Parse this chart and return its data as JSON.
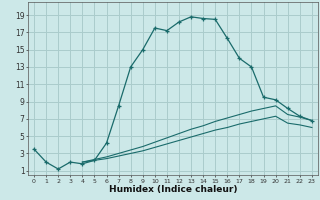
{
  "xlabel": "Humidex (Indice chaleur)",
  "xlim": [
    -0.5,
    23.5
  ],
  "ylim": [
    0.5,
    20.5
  ],
  "xticks": [
    0,
    1,
    2,
    3,
    4,
    5,
    6,
    7,
    8,
    9,
    10,
    11,
    12,
    13,
    14,
    15,
    16,
    17,
    18,
    19,
    20,
    21,
    22,
    23
  ],
  "yticks": [
    1,
    3,
    5,
    7,
    9,
    11,
    13,
    15,
    17,
    19
  ],
  "bg_color": "#cce8e8",
  "grid_color": "#aacccc",
  "line_color": "#1a6b6b",
  "curve1_x": [
    0,
    1,
    2,
    3,
    4,
    5,
    6,
    7,
    8,
    9,
    10,
    11,
    12,
    13,
    14,
    15,
    16,
    17,
    18,
    19,
    20,
    21,
    22,
    23
  ],
  "curve1_y": [
    3.5,
    2.0,
    1.2,
    2.0,
    1.8,
    2.2,
    4.2,
    8.5,
    13.0,
    15.0,
    17.5,
    17.2,
    18.2,
    18.8,
    18.6,
    18.5,
    16.3,
    14.0,
    13.0,
    9.5,
    9.2,
    8.2,
    7.3,
    6.8
  ],
  "curve2_x": [
    4,
    5,
    6,
    7,
    8,
    9,
    10,
    11,
    12,
    13,
    14,
    15,
    16,
    17,
    18,
    19,
    20,
    21,
    22,
    23
  ],
  "curve2_y": [
    2.0,
    2.3,
    2.6,
    3.0,
    3.4,
    3.8,
    4.3,
    4.8,
    5.3,
    5.8,
    6.2,
    6.7,
    7.1,
    7.5,
    7.9,
    8.2,
    8.5,
    7.5,
    7.2,
    6.8
  ],
  "curve3_x": [
    4,
    5,
    6,
    7,
    8,
    9,
    10,
    11,
    12,
    13,
    14,
    15,
    16,
    17,
    18,
    19,
    20,
    21,
    22,
    23
  ],
  "curve3_y": [
    2.0,
    2.2,
    2.4,
    2.7,
    3.0,
    3.3,
    3.7,
    4.1,
    4.5,
    4.9,
    5.3,
    5.7,
    6.0,
    6.4,
    6.7,
    7.0,
    7.3,
    6.5,
    6.3,
    6.0
  ]
}
